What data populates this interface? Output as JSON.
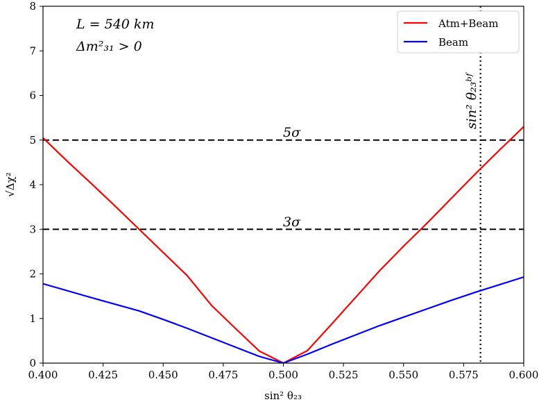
{
  "chart_data": {
    "type": "line",
    "title": "",
    "xlabel": "sin² θ₂₃",
    "ylabel": "√Δχ²",
    "xlim": [
      0.4,
      0.6
    ],
    "ylim": [
      0,
      8
    ],
    "x_ticks": [
      "0.400",
      "0.425",
      "0.450",
      "0.475",
      "0.500",
      "0.525",
      "0.550",
      "0.575",
      "0.600"
    ],
    "y_ticks": [
      "0",
      "1",
      "2",
      "3",
      "4",
      "5",
      "6",
      "7",
      "8"
    ],
    "grid": false,
    "legend_position": "top-right",
    "annotations": {
      "box_line1": "L = 540 km",
      "box_line2": "Δm²₃₁ > 0",
      "five_sigma": "5σ",
      "three_sigma": "3σ",
      "bestfit_label": "sin² θ₂₃ᵇᶠ"
    },
    "hlines": [
      {
        "y": 5,
        "style": "dashed",
        "label": "5σ"
      },
      {
        "y": 3,
        "style": "dashed",
        "label": "3σ"
      }
    ],
    "vlines": [
      {
        "x": 0.582,
        "style": "dotted",
        "label": "sin² θ₂₃ᵇᶠ"
      }
    ],
    "series": [
      {
        "name": "Atm+Beam",
        "color": "#ff0000",
        "points": [
          [
            0.4,
            5.05
          ],
          [
            0.41,
            4.53
          ],
          [
            0.42,
            4.03
          ],
          [
            0.43,
            3.52
          ],
          [
            0.44,
            3.0
          ],
          [
            0.45,
            2.48
          ],
          [
            0.46,
            1.96
          ],
          [
            0.47,
            1.3
          ],
          [
            0.48,
            0.78
          ],
          [
            0.49,
            0.27
          ],
          [
            0.5,
            0.0
          ],
          [
            0.51,
            0.28
          ],
          [
            0.52,
            0.87
          ],
          [
            0.53,
            1.47
          ],
          [
            0.54,
            2.07
          ],
          [
            0.55,
            2.62
          ],
          [
            0.56,
            3.15
          ],
          [
            0.57,
            3.7
          ],
          [
            0.58,
            4.25
          ],
          [
            0.59,
            4.78
          ],
          [
            0.6,
            5.3
          ]
        ]
      },
      {
        "name": "Beam",
        "color": "#0000ff",
        "points": [
          [
            0.4,
            1.78
          ],
          [
            0.42,
            1.47
          ],
          [
            0.44,
            1.17
          ],
          [
            0.45,
            0.98
          ],
          [
            0.46,
            0.78
          ],
          [
            0.47,
            0.57
          ],
          [
            0.48,
            0.36
          ],
          [
            0.49,
            0.15
          ],
          [
            0.5,
            0.0
          ],
          [
            0.51,
            0.2
          ],
          [
            0.52,
            0.42
          ],
          [
            0.53,
            0.63
          ],
          [
            0.54,
            0.84
          ],
          [
            0.55,
            1.03
          ],
          [
            0.56,
            1.22
          ],
          [
            0.57,
            1.41
          ],
          [
            0.58,
            1.59
          ],
          [
            0.59,
            1.76
          ],
          [
            0.6,
            1.93
          ]
        ]
      }
    ]
  }
}
